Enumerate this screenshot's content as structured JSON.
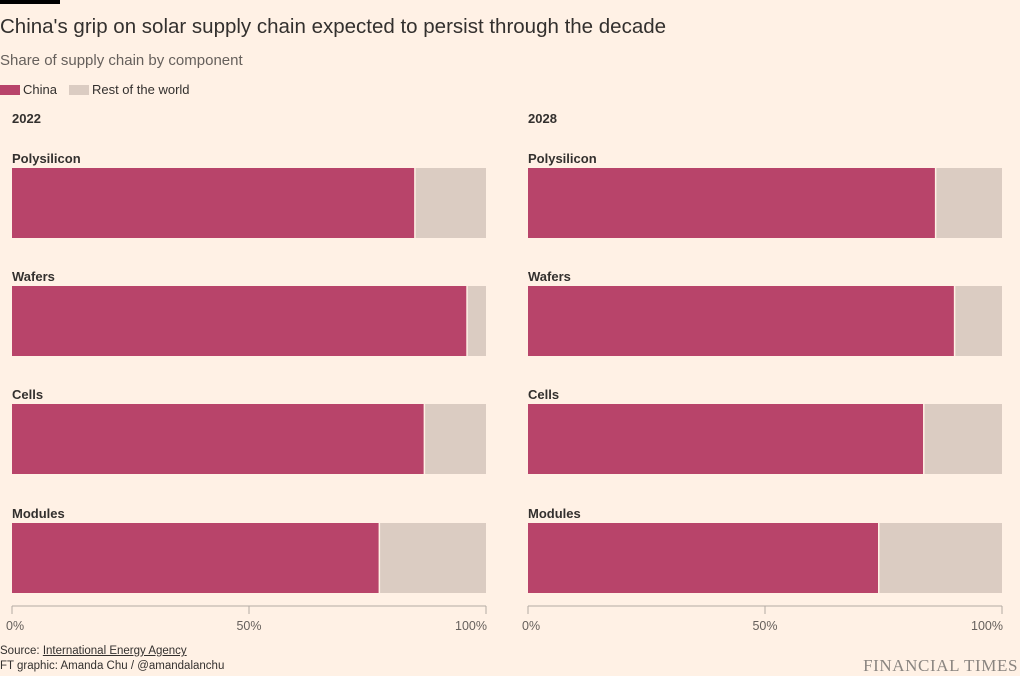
{
  "title": "China's grip on solar supply chain expected to persist through the decade",
  "subtitle": "Share of supply chain by component",
  "legend": [
    {
      "label": "China",
      "color": "#B8446A"
    },
    {
      "label": "Rest of the world",
      "color": "#DBCCC2"
    }
  ],
  "source": {
    "prefix": "Source: ",
    "name": "International Energy Agency"
  },
  "credit": "FT graphic: Amanda Chu / @amandalanchu",
  "brand": "FINANCIAL TIMES",
  "chart_data": [
    {
      "type": "bar",
      "orientation": "horizontal",
      "stacked": true,
      "title": "2022",
      "categories": [
        "Polysilicon",
        "Wafers",
        "Cells",
        "Modules"
      ],
      "series": [
        {
          "name": "China",
          "values": [
            85,
            96,
            87,
            77.5
          ]
        },
        {
          "name": "Rest of the world",
          "values": [
            15,
            4,
            13,
            22.5
          ]
        }
      ],
      "xlim": [
        0,
        100
      ],
      "xticks": [
        "0%",
        "50%",
        "100%"
      ]
    },
    {
      "type": "bar",
      "orientation": "horizontal",
      "stacked": true,
      "title": "2028",
      "categories": [
        "Polysilicon",
        "Wafers",
        "Cells",
        "Modules"
      ],
      "series": [
        {
          "name": "China",
          "values": [
            86,
            90,
            83.5,
            74
          ]
        },
        {
          "name": "Rest of the world",
          "values": [
            14,
            10,
            16.5,
            26
          ]
        }
      ],
      "xlim": [
        0,
        100
      ],
      "xticks": [
        "0%",
        "50%",
        "100%"
      ]
    }
  ]
}
